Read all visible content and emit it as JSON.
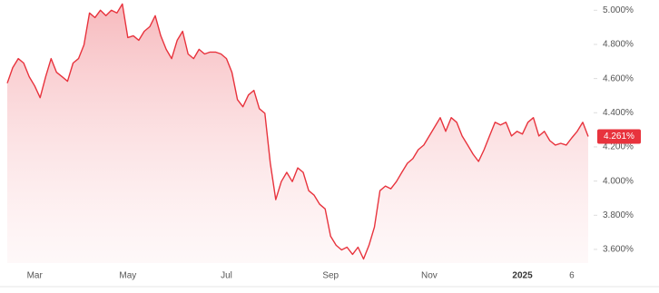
{
  "chart_data": {
    "type": "area",
    "categories": [
      null,
      null,
      null,
      null,
      null,
      "Mar",
      null,
      null,
      null,
      null,
      null,
      null,
      null,
      null,
      null,
      null,
      null,
      null,
      null,
      null,
      null,
      null,
      "May",
      null,
      null,
      null,
      null,
      null,
      null,
      null,
      null,
      null,
      null,
      null,
      null,
      null,
      null,
      null,
      null,
      null,
      "Jul",
      null,
      null,
      null,
      null,
      null,
      null,
      null,
      null,
      null,
      null,
      null,
      null,
      null,
      null,
      null,
      null,
      null,
      null,
      "Sep",
      null,
      null,
      null,
      null,
      null,
      null,
      null,
      null,
      null,
      null,
      null,
      null,
      null,
      null,
      null,
      null,
      null,
      "Nov",
      null,
      null,
      null,
      null,
      null,
      null,
      null,
      null,
      null,
      null,
      null,
      null,
      null,
      null,
      null,
      null,
      "2025",
      null,
      null,
      null,
      null,
      null,
      null,
      null,
      null,
      "6",
      null,
      null,
      null
    ],
    "series": [
      {
        "color": "#e8333d",
        "values": [
          4.573,
          4.664,
          4.717,
          4.691,
          4.611,
          4.557,
          4.488,
          4.611,
          4.717,
          4.637,
          4.611,
          4.584,
          4.691,
          4.717,
          4.797,
          4.984,
          4.957,
          5.0,
          4.968,
          5.0,
          4.984,
          5.037,
          4.84,
          4.851,
          4.824,
          4.877,
          4.904,
          4.968,
          4.851,
          4.771,
          4.717,
          4.824,
          4.877,
          4.744,
          4.717,
          4.771,
          4.744,
          4.755,
          4.755,
          4.744,
          4.717,
          4.637,
          4.477,
          4.435,
          4.504,
          4.531,
          4.424,
          4.397,
          4.104,
          3.891,
          3.997,
          4.051,
          3.997,
          4.077,
          4.051,
          3.944,
          3.917,
          3.864,
          3.837,
          3.677,
          3.624,
          3.597,
          3.613,
          3.571,
          3.613,
          3.544,
          3.624,
          3.731,
          3.944,
          3.971,
          3.955,
          3.997,
          4.051,
          4.104,
          4.131,
          4.184,
          4.211,
          4.264,
          4.317,
          4.371,
          4.291,
          4.371,
          4.344,
          4.264,
          4.211,
          4.157,
          4.115,
          4.184,
          4.264,
          4.344,
          4.328,
          4.344,
          4.264,
          4.291,
          4.275,
          4.344,
          4.371,
          4.264,
          4.291,
          4.237,
          4.211,
          4.221,
          4.211,
          4.253,
          4.291,
          4.344,
          4.261
        ]
      }
    ],
    "last_label": "4.261%",
    "ylim": [
      3.52,
      5.06
    ],
    "yticks": [
      {
        "value": 3.6,
        "label": "3.600%"
      },
      {
        "value": 3.8,
        "label": "3.800%"
      },
      {
        "value": 4.0,
        "label": "4.000%"
      },
      {
        "value": 4.2,
        "label": "4.200%"
      },
      {
        "value": 4.4,
        "label": "4.400%"
      },
      {
        "value": 4.6,
        "label": "4.600%"
      },
      {
        "value": 4.8,
        "label": "4.800%"
      },
      {
        "value": 5.0,
        "label": "5.000%"
      }
    ],
    "y_axis_side": "right"
  }
}
